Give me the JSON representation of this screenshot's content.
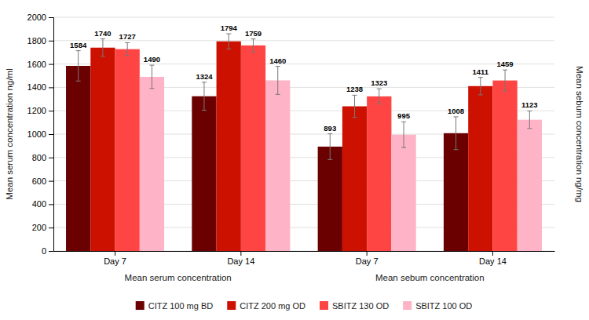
{
  "chart_data": {
    "type": "bar",
    "categories": [
      "Day 7",
      "Day 14",
      "Day 7",
      "Day 14"
    ],
    "annotations": [
      "Mean serum concentration",
      "Mean sebum concentration"
    ],
    "series": [
      {
        "name": "CITZ 100 mg BD",
        "color": "#6B0000",
        "values": [
          1584,
          1324,
          893,
          1008
        ],
        "errors": [
          130,
          120,
          110,
          140
        ]
      },
      {
        "name": "CITZ 200 mg OD",
        "color": "#CC1100",
        "values": [
          1740,
          1794,
          1238,
          1411
        ],
        "errors": [
          75,
          65,
          95,
          75
        ]
      },
      {
        "name": "SBITZ 130 OD",
        "color": "#FF4444",
        "values": [
          1727,
          1759,
          1323,
          1459
        ],
        "errors": [
          55,
          55,
          65,
          90
        ]
      },
      {
        "name": "SBITZ 100 OD",
        "color": "#FFB3C6",
        "values": [
          1490,
          1460,
          995,
          1123
        ],
        "errors": [
          100,
          120,
          110,
          75
        ]
      }
    ],
    "ylabel": "Mean serum concentration ng/ml",
    "y2label": "Mean sebum concentration ng/mg",
    "ylim": [
      0,
      2000
    ],
    "yticks": [
      0,
      200,
      400,
      600,
      800,
      1000,
      1200,
      1400,
      1600,
      1800,
      2000
    ],
    "grid": true,
    "data_labels": true,
    "legend": "bottom"
  }
}
